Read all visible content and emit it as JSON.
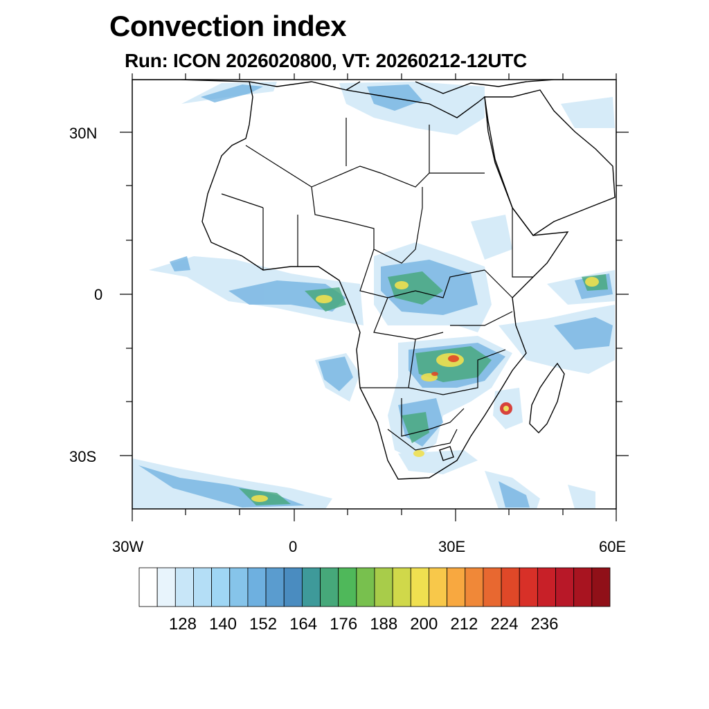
{
  "title": "Convection index",
  "subtitle": "Run: ICON 2026020800,  VT: 20260212-12UTC",
  "map": {
    "region": "Africa",
    "lon_range": [
      -30,
      60
    ],
    "lat_range": [
      -40,
      40
    ],
    "lat_tick_labels": [
      "30N",
      "0",
      "30S"
    ],
    "lon_tick_labels": [
      "30W",
      "0",
      "30E",
      "60E"
    ]
  },
  "colorbar": {
    "colors": [
      "#ffffff",
      "#e8f4fc",
      "#c8e6f8",
      "#b4def6",
      "#9fd6f4",
      "#86c4ea",
      "#6eb0e0",
      "#5a9ccf",
      "#4a8cc0",
      "#3e9a9a",
      "#46a87a",
      "#4fb85a",
      "#78c04e",
      "#a8cc4a",
      "#d0d84a",
      "#f0e050",
      "#f8c84a",
      "#f8a840",
      "#f08838",
      "#e86830",
      "#e04828",
      "#d83028",
      "#c82028",
      "#b81828",
      "#a81420",
      "#901018"
    ],
    "labels": [
      "128",
      "140",
      "152",
      "164",
      "176",
      "188",
      "200",
      "212",
      "224",
      "236"
    ]
  }
}
